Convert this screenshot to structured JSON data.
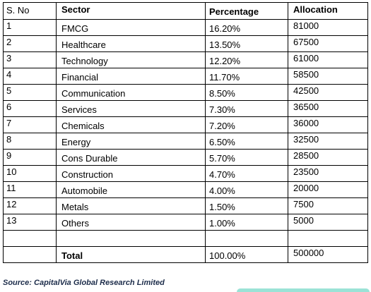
{
  "table": {
    "headers": [
      "S. No",
      "Sector",
      "Percentage",
      "Allocation"
    ],
    "rows": [
      [
        "1",
        "FMCG",
        "16.20%",
        "81000"
      ],
      [
        "2",
        "Healthcare",
        "13.50%",
        "67500"
      ],
      [
        "3",
        "Technology",
        "12.20%",
        "61000"
      ],
      [
        "4",
        "Financial",
        "11.70%",
        "58500"
      ],
      [
        "5",
        "Communication",
        "8.50%",
        "42500"
      ],
      [
        "6",
        "Services",
        "7.30%",
        "36500"
      ],
      [
        "7",
        "Chemicals",
        "7.20%",
        "36000"
      ],
      [
        "8",
        "Energy",
        "6.50%",
        "32500"
      ],
      [
        "9",
        "Cons Durable",
        "5.70%",
        "28500"
      ],
      [
        "10",
        "Construction",
        "4.70%",
        "23500"
      ],
      [
        "11",
        "Automobile",
        "4.00%",
        "20000"
      ],
      [
        "12",
        "Metals",
        "1.50%",
        "7500"
      ],
      [
        "13",
        "Others",
        "1.00%",
        "5000"
      ],
      [
        "",
        "",
        "",
        ""
      ],
      [
        "",
        "Total",
        "100.00%",
        "500000"
      ]
    ]
  },
  "source_note": "Source: CapitalVia Global Research Limited",
  "colors": {
    "accent_bar": "#9be2d6",
    "source_text": "#1c2c4a"
  }
}
